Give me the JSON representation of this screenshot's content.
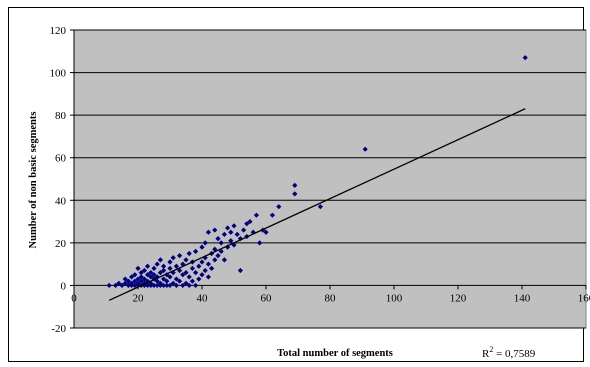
{
  "chart_data": {
    "type": "scatter",
    "title": "",
    "xlabel": "Total number of segments",
    "ylabel": "Number of non basic segments",
    "xlim": [
      0,
      160
    ],
    "ylim": [
      -20,
      120
    ],
    "xticks": [
      0,
      20,
      40,
      60,
      80,
      100,
      120,
      140,
      160
    ],
    "yticks": [
      -20,
      0,
      20,
      40,
      60,
      80,
      100,
      120
    ],
    "grid": "horizontal",
    "legend": "none",
    "colors": {
      "plot_bg": "#c0c0c0",
      "marker": "#000080",
      "trendline": "#000000",
      "gridline": "#000000"
    },
    "trendline": {
      "type": "linear",
      "x_start": 11,
      "y_start": -7,
      "x_end": 141,
      "y_end": 83,
      "r2_label": "R",
      "r2_sup": "2",
      "r2_value": " = 0,7589"
    },
    "series": [
      {
        "marker": "diamond",
        "x": [
          11,
          13,
          14,
          15,
          16,
          16,
          17,
          17,
          18,
          18,
          18,
          19,
          19,
          19,
          20,
          20,
          20,
          20,
          21,
          21,
          21,
          21,
          22,
          22,
          22,
          22,
          23,
          23,
          23,
          23,
          24,
          24,
          24,
          24,
          25,
          25,
          25,
          25,
          26,
          26,
          26,
          26,
          27,
          27,
          27,
          27,
          28,
          28,
          28,
          28,
          29,
          29,
          29,
          30,
          30,
          30,
          30,
          31,
          31,
          31,
          32,
          32,
          32,
          33,
          33,
          33,
          34,
          34,
          34,
          35,
          35,
          35,
          36,
          36,
          36,
          37,
          37,
          37,
          38,
          38,
          38,
          39,
          39,
          40,
          40,
          40,
          41,
          41,
          41,
          42,
          42,
          42,
          43,
          43,
          44,
          44,
          44,
          45,
          45,
          46,
          46,
          47,
          47,
          48,
          48,
          49,
          49,
          50,
          50,
          51,
          52,
          52,
          53,
          54,
          54,
          55,
          56,
          57,
          58,
          59,
          60,
          62,
          64,
          69,
          69,
          77,
          91,
          141
        ],
        "y": [
          0,
          0,
          1,
          0,
          1,
          3,
          0,
          2,
          0,
          1,
          4,
          0,
          2,
          5,
          0,
          1,
          3,
          8,
          0,
          2,
          4,
          6,
          0,
          1,
          3,
          7,
          0,
          2,
          5,
          9,
          0,
          1,
          4,
          6,
          0,
          3,
          5,
          8,
          0,
          2,
          4,
          10,
          0,
          1,
          6,
          12,
          0,
          3,
          7,
          9,
          0,
          2,
          5,
          0,
          4,
          8,
          11,
          1,
          6,
          13,
          0,
          3,
          9,
          2,
          7,
          14,
          0,
          5,
          10,
          1,
          6,
          12,
          0,
          4,
          15,
          2,
          8,
          11,
          0,
          6,
          16,
          3,
          9,
          5,
          11,
          18,
          7,
          13,
          20,
          4,
          10,
          25,
          8,
          15,
          12,
          17,
          26,
          14,
          22,
          16,
          20,
          12,
          24,
          18,
          27,
          21,
          25,
          19,
          28,
          24,
          22,
          7,
          26,
          23,
          29,
          30,
          25,
          33,
          20,
          26,
          25,
          33,
          37,
          43,
          47,
          37,
          64,
          107
        ]
      }
    ]
  }
}
